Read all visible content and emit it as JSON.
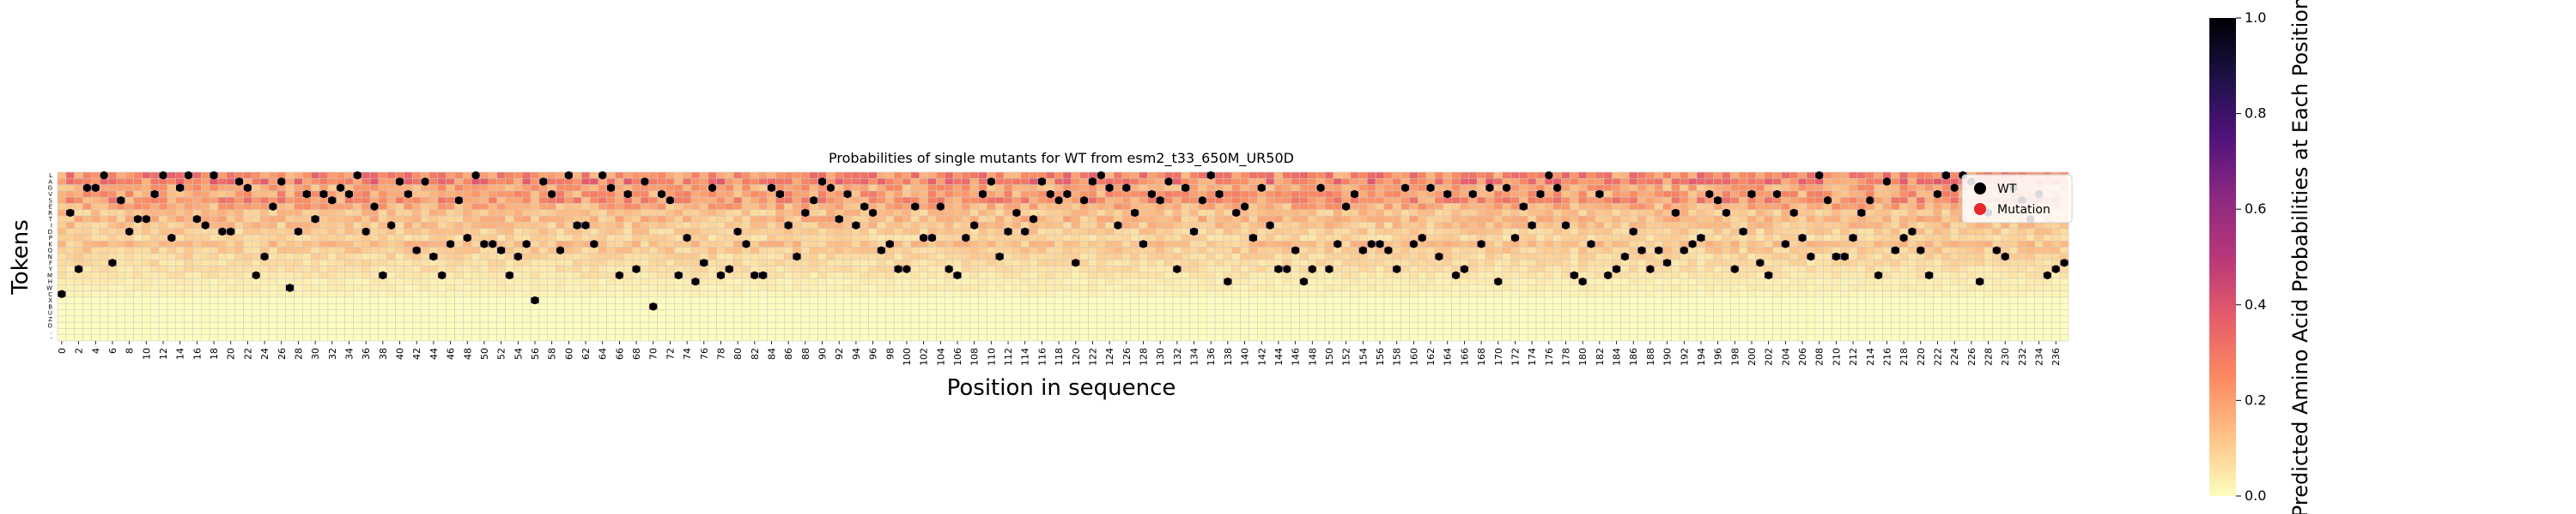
{
  "chart_data": {
    "type": "heatmap",
    "title": "Probabilities of single mutants for WT from esm2_t33_650M_UR50D",
    "xlabel": "Position in sequence",
    "ylabel": "Tokens",
    "x_range": [
      0,
      237
    ],
    "x_tick_step": 2,
    "y_tokens": [
      "L",
      "A",
      "G",
      "V",
      "S",
      "E",
      "R",
      "T",
      "I",
      "D",
      "P",
      "K",
      "Q",
      "N",
      "F",
      "Y",
      "M",
      "H",
      "W",
      "C",
      "X",
      "B",
      "U",
      "Z",
      "O",
      ".",
      "-"
    ],
    "colorbar": {
      "label": "Predicted Amino Acid Probabilities at Each Position",
      "ticks": [
        "0.0",
        "0.2",
        "0.4",
        "0.6",
        "0.8",
        "1.0"
      ],
      "colormap": "magma_r",
      "range": [
        0,
        1
      ]
    },
    "legend": {
      "placement": "right-inside",
      "entries": [
        {
          "name": "WT",
          "color": "#000000"
        },
        {
          "name": "Mutation",
          "color": "#e8262b"
        }
      ]
    },
    "wt_token_index": [
      19,
      6,
      15,
      2,
      2,
      0,
      14,
      4,
      9,
      7,
      7,
      3,
      0,
      10,
      2,
      0,
      7,
      8,
      0,
      9,
      9,
      1,
      2,
      16,
      13,
      5,
      1,
      18,
      9,
      3,
      7,
      3,
      4,
      2,
      3,
      0,
      9,
      5,
      16,
      8,
      1,
      3,
      12,
      1,
      13,
      16,
      11,
      4,
      10,
      0,
      11,
      11,
      12,
      16,
      13,
      11,
      20,
      1,
      3,
      12,
      0,
      8,
      8,
      11,
      0,
      2,
      16,
      3,
      15,
      1,
      21,
      3,
      4,
      16,
      10,
      17,
      14,
      2,
      16,
      15,
      9,
      11,
      16,
      16,
      2,
      3,
      8,
      13,
      6,
      4,
      1,
      2,
      7,
      3,
      8,
      5,
      6,
      12,
      11,
      15,
      15,
      5,
      10,
      10,
      5,
      15,
      16,
      10,
      8,
      3,
      1,
      13,
      9,
      6,
      9,
      7,
      1,
      3,
      4,
      3,
      14,
      4,
      1,
      0,
      2,
      8,
      2,
      6,
      11,
      3,
      4,
      1,
      15,
      2,
      9,
      4,
      0,
      3,
      17,
      6,
      5,
      10,
      2,
      8,
      15,
      15,
      12,
      17,
      15,
      2,
      15,
      11,
      5,
      3,
      12,
      11,
      11,
      12,
      15,
      2,
      11,
      10,
      2,
      13,
      3,
      16,
      15,
      3,
      11,
      2,
      17,
      2,
      10,
      5,
      8,
      3,
      0,
      2,
      8,
      16,
      17,
      11,
      3,
      16,
      15,
      13,
      9,
      12,
      15,
      12,
      14,
      6,
      12,
      11,
      10,
      3,
      4,
      6,
      15,
      9,
      3,
      14,
      16,
      3,
      11,
      6,
      10,
      13,
      0,
      4,
      13,
      13,
      10,
      6,
      4,
      16,
      1,
      12,
      10,
      9,
      12,
      16,
      3,
      0,
      2,
      0,
      1,
      17,
      6,
      12,
      13,
      2,
      4,
      7,
      3,
      16,
      15,
      14
    ]
  }
}
